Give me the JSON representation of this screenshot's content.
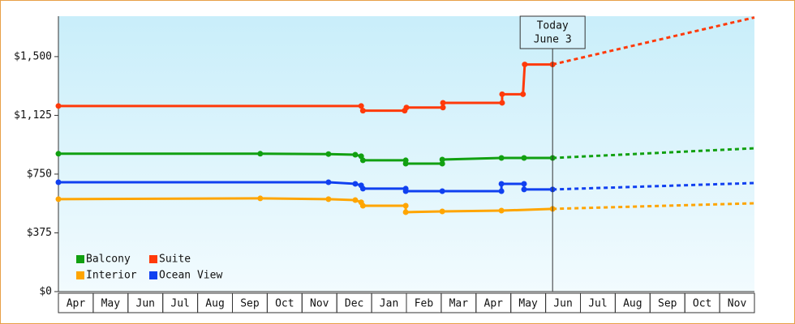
{
  "chart_data": {
    "type": "step-line",
    "categories": [
      "Apr",
      "May",
      "Jun",
      "Jul",
      "Aug",
      "Sep",
      "Oct",
      "Nov",
      "Dec",
      "Jan",
      "Feb",
      "Mar",
      "Apr",
      "May",
      "Jun",
      "Jul",
      "Aug",
      "Sep",
      "Oct",
      "Nov"
    ],
    "xlim": [
      0,
      20
    ],
    "ylim": [
      0,
      1758
    ],
    "yticks": [
      {
        "value": 0,
        "label": "$0"
      },
      {
        "value": 375,
        "label": "$375"
      },
      {
        "value": 750,
        "label": "$750"
      },
      {
        "value": 1125,
        "label": "$1,125"
      },
      {
        "value": 1500,
        "label": "$1,500"
      }
    ],
    "annotation": {
      "x": 14.2,
      "lines": [
        "Today",
        "June 3"
      ]
    },
    "legend": "bottom-left",
    "series": [
      {
        "name": "Balcony",
        "color": "#11a011",
        "x": [
          0,
          5.8,
          7.76,
          8.53,
          8.7,
          8.75,
          9.98,
          9.98,
          11.03,
          11.03,
          12.73,
          13.38,
          14.2
        ],
        "values": [
          880,
          880,
          878,
          874,
          864,
          838,
          838,
          817,
          817,
          843,
          853,
          853,
          853
        ],
        "forecast": {
          "x": [
            14.2,
            20
          ],
          "values": [
            853,
            915
          ]
        }
      },
      {
        "name": "Suite",
        "color": "#ff3a0a",
        "x": [
          0,
          8.7,
          8.75,
          9.95,
          10,
          11.05,
          11.05,
          12.75,
          12.75,
          13.35,
          13.4,
          14.2
        ],
        "values": [
          1185,
          1185,
          1155,
          1155,
          1175,
          1175,
          1205,
          1205,
          1260,
          1260,
          1450,
          1450
        ],
        "forecast": {
          "x": [
            14.2,
            20
          ],
          "values": [
            1450,
            1750
          ]
        }
      },
      {
        "name": "Interior",
        "color": "#ffa500",
        "x": [
          0,
          5.8,
          7.76,
          8.53,
          8.7,
          8.75,
          9.98,
          9.98,
          11.03,
          12.73,
          14.2
        ],
        "values": [
          590,
          595,
          590,
          584,
          570,
          548,
          548,
          507,
          512,
          517,
          528
        ],
        "forecast": {
          "x": [
            14.2,
            20
          ],
          "values": [
            528,
            564
          ]
        }
      },
      {
        "name": "Ocean View",
        "color": "#1040f0",
        "x": [
          0,
          7.76,
          8.53,
          8.7,
          8.75,
          9.98,
          9.98,
          11.03,
          12.73,
          12.73,
          13.38,
          13.38,
          14.2
        ],
        "values": [
          698,
          698,
          688,
          678,
          657,
          657,
          641,
          641,
          641,
          688,
          688,
          652,
          652
        ],
        "forecast": {
          "x": [
            14.2,
            20
          ],
          "values": [
            652,
            693
          ]
        }
      }
    ]
  }
}
